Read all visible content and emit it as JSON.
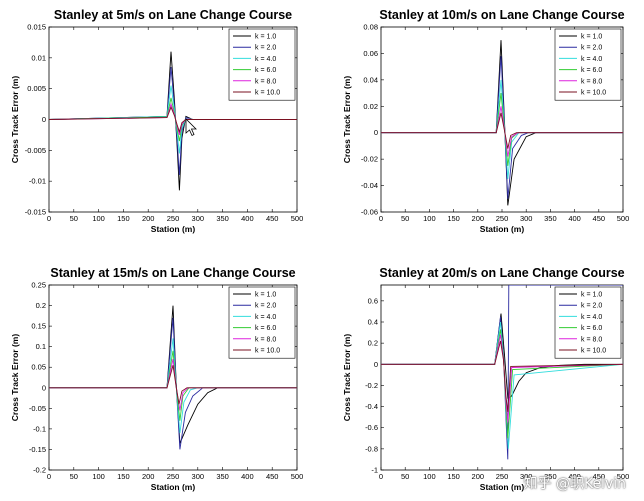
{
  "chart_data": [
    {
      "type": "line",
      "title": "Stanley at 5m/s on Lane Change Course",
      "xlabel": "Station (m)",
      "ylabel": "Cross Track Error (m)",
      "xlim": [
        0,
        500
      ],
      "ylim": [
        -0.015,
        0.015
      ],
      "xticks": [
        "0",
        "50",
        "100",
        "150",
        "200",
        "250",
        "300",
        "350",
        "400",
        "450",
        "500"
      ],
      "yticks": [
        "-0.015",
        "-0.01",
        "-0.005",
        "0",
        "0.005",
        "0.01",
        "0.015"
      ],
      "series": [
        {
          "name": "k = 1.0",
          "color": "#000000",
          "x": [
            0,
            238,
            246,
            253,
            258,
            263,
            268,
            276,
            290,
            500
          ],
          "y": [
            0,
            0.0005,
            0.011,
            0.003,
            -0.004,
            -0.0115,
            -0.003,
            0.0005,
            0,
            0
          ]
        },
        {
          "name": "k = 2.0",
          "color": "#2b2ba0",
          "x": [
            0,
            238,
            246,
            253,
            258,
            263,
            268,
            276,
            290,
            500
          ],
          "y": [
            0,
            0.0005,
            0.0085,
            0.002,
            -0.003,
            -0.009,
            -0.002,
            0.0003,
            0,
            0
          ]
        },
        {
          "name": "k = 4.0",
          "color": "#33dddd",
          "x": [
            0,
            238,
            246,
            253,
            258,
            263,
            268,
            276,
            290,
            500
          ],
          "y": [
            0,
            0.0005,
            0.0055,
            0.0015,
            -0.002,
            -0.0055,
            -0.0015,
            0.0002,
            0,
            0
          ]
        },
        {
          "name": "k = 6.0",
          "color": "#33cc33",
          "x": [
            0,
            238,
            246,
            253,
            258,
            263,
            268,
            276,
            290,
            500
          ],
          "y": [
            0,
            0.0004,
            0.0035,
            0.001,
            -0.0015,
            -0.0035,
            -0.001,
            0.0001,
            0,
            0
          ]
        },
        {
          "name": "k = 8.0",
          "color": "#dd22dd",
          "x": [
            0,
            238,
            246,
            253,
            258,
            263,
            268,
            276,
            290,
            500
          ],
          "y": [
            0,
            0.0003,
            0.0025,
            0.0008,
            -0.001,
            -0.0025,
            -0.0008,
            0.0001,
            0,
            0
          ]
        },
        {
          "name": "k = 10.0",
          "color": "#7a1020",
          "x": [
            0,
            238,
            246,
            253,
            258,
            263,
            268,
            276,
            290,
            500
          ],
          "y": [
            0,
            0.0003,
            0.002,
            0.0006,
            -0.0008,
            -0.002,
            -0.0005,
            0,
            0,
            0
          ]
        }
      ]
    },
    {
      "type": "line",
      "title": "Stanley at 10m/s on Lane Change Course",
      "xlabel": "Station (m)",
      "ylabel": "Cross Track Error (m)",
      "xlim": [
        0,
        500
      ],
      "ylim": [
        -0.06,
        0.08
      ],
      "xticks": [
        "0",
        "50",
        "100",
        "150",
        "200",
        "250",
        "300",
        "350",
        "400",
        "450",
        "500"
      ],
      "yticks": [
        "-0.06",
        "-0.04",
        "-0.02",
        "0",
        "0.02",
        "0.04",
        "0.06",
        "0.08"
      ],
      "series": [
        {
          "name": "k = 1.0",
          "color": "#000000",
          "x": [
            0,
            238,
            248,
            255,
            262,
            275,
            300,
            320,
            500
          ],
          "y": [
            0,
            0,
            0.07,
            0.01,
            -0.055,
            -0.02,
            -0.003,
            0,
            0
          ]
        },
        {
          "name": "k = 2.0",
          "color": "#2b2ba0",
          "x": [
            0,
            238,
            248,
            255,
            262,
            272,
            290,
            305,
            500
          ],
          "y": [
            0,
            0,
            0.058,
            0.008,
            -0.05,
            -0.012,
            -0.002,
            0,
            0
          ]
        },
        {
          "name": "k = 4.0",
          "color": "#33dddd",
          "x": [
            0,
            238,
            248,
            255,
            262,
            270,
            285,
            500
          ],
          "y": [
            0,
            0,
            0.04,
            0.005,
            -0.035,
            -0.007,
            0,
            0
          ]
        },
        {
          "name": "k = 6.0",
          "color": "#33cc33",
          "x": [
            0,
            238,
            248,
            255,
            262,
            270,
            283,
            500
          ],
          "y": [
            0,
            0,
            0.03,
            0.004,
            -0.025,
            -0.004,
            0,
            0
          ]
        },
        {
          "name": "k = 8.0",
          "color": "#dd22dd",
          "x": [
            0,
            238,
            248,
            255,
            262,
            270,
            283,
            500
          ],
          "y": [
            0,
            0,
            0.02,
            0.003,
            -0.018,
            -0.003,
            0,
            0
          ]
        },
        {
          "name": "k = 10.0",
          "color": "#7a1020",
          "x": [
            0,
            238,
            248,
            255,
            262,
            268,
            280,
            500
          ],
          "y": [
            0,
            0,
            0.015,
            0.002,
            -0.012,
            -0.002,
            0,
            0
          ]
        }
      ]
    },
    {
      "type": "line",
      "title": "Stanley at 15m/s on Lane Change Course",
      "xlabel": "Station (m)",
      "ylabel": "Cross Track Error (m)",
      "xlim": [
        0,
        500
      ],
      "ylim": [
        -0.2,
        0.25
      ],
      "xticks": [
        "0",
        "50",
        "100",
        "150",
        "200",
        "250",
        "300",
        "350",
        "400",
        "450",
        "500"
      ],
      "yticks": [
        "-0.2",
        "-0.15",
        "-0.1",
        "-0.05",
        "0",
        "0.05",
        "0.1",
        "0.15",
        "0.2",
        "0.25"
      ],
      "series": [
        {
          "name": "k = 1.0",
          "color": "#000000",
          "x": [
            0,
            238,
            250,
            256,
            264,
            280,
            300,
            320,
            340,
            500
          ],
          "y": [
            0,
            0,
            0.2,
            0.02,
            -0.135,
            -0.09,
            -0.04,
            -0.012,
            0,
            0
          ]
        },
        {
          "name": "k = 2.0",
          "color": "#2b2ba0",
          "x": [
            0,
            238,
            250,
            256,
            264,
            275,
            290,
            310,
            500
          ],
          "y": [
            0,
            0,
            0.17,
            0.015,
            -0.15,
            -0.06,
            -0.02,
            0,
            0
          ]
        },
        {
          "name": "k = 4.0",
          "color": "#33dddd",
          "x": [
            0,
            238,
            250,
            256,
            264,
            272,
            285,
            300,
            500
          ],
          "y": [
            0,
            0,
            0.12,
            0.01,
            -0.11,
            -0.035,
            -0.005,
            0,
            0
          ]
        },
        {
          "name": "k = 6.0",
          "color": "#33cc33",
          "x": [
            0,
            238,
            250,
            256,
            264,
            270,
            282,
            500
          ],
          "y": [
            0,
            0,
            0.09,
            0.008,
            -0.08,
            -0.02,
            0,
            0
          ]
        },
        {
          "name": "k = 8.0",
          "color": "#dd22dd",
          "x": [
            0,
            238,
            250,
            256,
            264,
            270,
            280,
            500
          ],
          "y": [
            0,
            0,
            0.07,
            0.006,
            -0.055,
            -0.012,
            0,
            0
          ]
        },
        {
          "name": "k = 10.0",
          "color": "#7a1020",
          "x": [
            0,
            238,
            250,
            256,
            262,
            268,
            278,
            500
          ],
          "y": [
            0,
            0,
            0.055,
            0.005,
            -0.04,
            -0.008,
            0,
            0
          ]
        }
      ]
    },
    {
      "type": "line",
      "title": "Stanley at 20m/s on Lane Change Course",
      "xlabel": "Station (m)",
      "ylabel": "Cross Track Error (m)",
      "xlim": [
        0,
        500
      ],
      "ylim": [
        -1,
        0.75
      ],
      "xticks": [
        "0",
        "50",
        "100",
        "150",
        "200",
        "250",
        "300",
        "350",
        "400",
        "450",
        "500"
      ],
      "yticks": [
        "-1",
        "-0.8",
        "-0.6",
        "-0.4",
        "-0.2",
        "0",
        "0.2",
        "0.4",
        "0.6"
      ],
      "series": [
        {
          "name": "k = 1.0",
          "color": "#000000",
          "x": [
            0,
            235,
            248,
            255,
            262,
            270,
            285,
            300,
            330,
            370,
            420,
            500
          ],
          "y": [
            0,
            0,
            0.48,
            0.1,
            -0.32,
            -0.3,
            -0.16,
            -0.08,
            -0.03,
            -0.01,
            0,
            0
          ]
        },
        {
          "name": "k = 2.0",
          "color": "#2b2ba0",
          "x": [
            0,
            235,
            247,
            253,
            258,
            262,
            264,
            266,
            500
          ],
          "y": [
            0,
            0,
            0.45,
            0.1,
            -0.5,
            -0.9,
            0.75,
            0.75,
            0.75
          ]
        },
        {
          "name": "k = 4.0",
          "color": "#33dddd",
          "x": [
            0,
            235,
            247,
            253,
            258,
            263,
            275,
            500
          ],
          "y": [
            0,
            0,
            0.4,
            0.08,
            -0.45,
            -0.8,
            -0.1,
            0
          ]
        },
        {
          "name": "k = 6.0",
          "color": "#33cc33",
          "x": [
            0,
            235,
            247,
            253,
            258,
            262,
            272,
            500
          ],
          "y": [
            0,
            0,
            0.33,
            0.06,
            -0.4,
            -0.7,
            -0.05,
            0
          ]
        },
        {
          "name": "k = 8.0",
          "color": "#dd22dd",
          "x": [
            0,
            235,
            247,
            253,
            258,
            262,
            270,
            500
          ],
          "y": [
            0,
            0,
            0.28,
            0.05,
            -0.35,
            -0.55,
            -0.03,
            0
          ]
        },
        {
          "name": "k = 10.0",
          "color": "#7a1020",
          "x": [
            0,
            235,
            247,
            253,
            258,
            262,
            268,
            500
          ],
          "y": [
            0,
            0,
            0.22,
            0.04,
            -0.3,
            -0.45,
            -0.02,
            0
          ]
        }
      ]
    }
  ],
  "watermark": "知乎 @职Kelvin"
}
